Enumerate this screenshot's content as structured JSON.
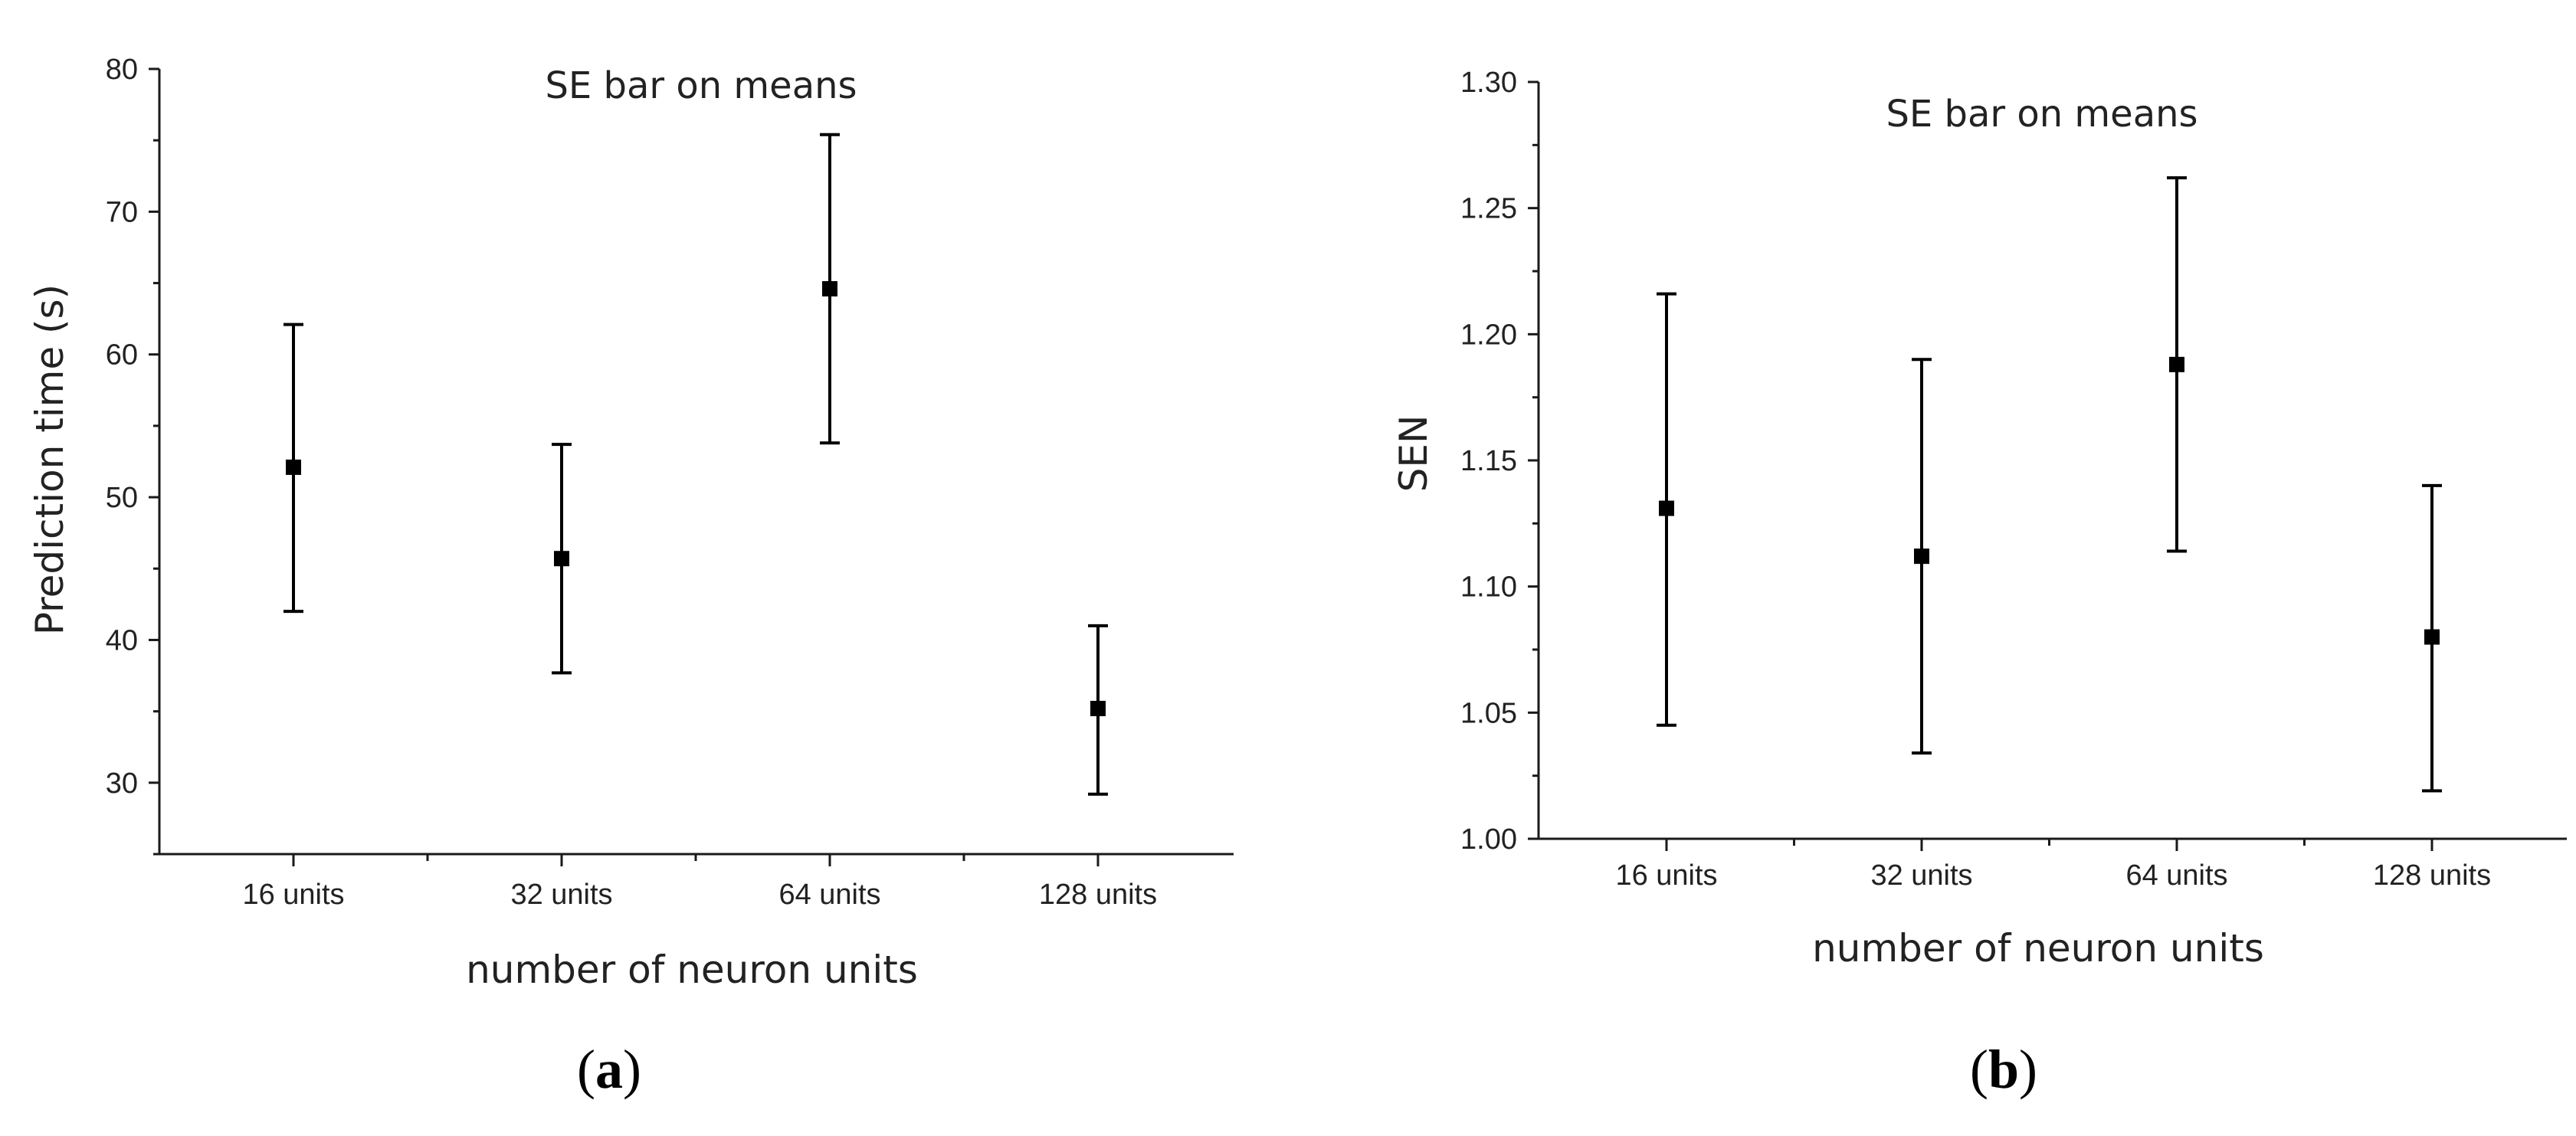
{
  "chart_data": [
    {
      "type": "scatter",
      "title": "SE bar on means",
      "xlabel": "number of neuron units",
      "ylabel": "Prediction time (s)",
      "categories": [
        "16 units",
        "32 units",
        "64 units",
        "128 units"
      ],
      "series": [
        {
          "values": [
            52.1,
            45.7,
            64.6,
            35.2
          ],
          "error_low": [
            42.0,
            37.7,
            53.8,
            29.2
          ],
          "error_high": [
            62.1,
            53.7,
            75.4,
            41.0
          ]
        }
      ],
      "ylim": [
        25,
        80
      ],
      "yticks": [
        30,
        40,
        50,
        60,
        70,
        80
      ],
      "ytick_labels": [
        "30",
        "40",
        "50",
        "60",
        "70",
        "80"
      ],
      "grid": false,
      "legend": "none",
      "color": "#000000",
      "caption_letter": "a"
    },
    {
      "type": "scatter",
      "title": "SE bar on means",
      "xlabel": "number of neuron units",
      "ylabel": "SEN",
      "categories": [
        "16 units",
        "32 units",
        "64 units",
        "128 units"
      ],
      "series": [
        {
          "values": [
            1.131,
            1.112,
            1.188,
            1.08
          ],
          "error_low": [
            1.045,
            1.034,
            1.114,
            1.019
          ],
          "error_high": [
            1.216,
            1.19,
            1.262,
            1.14
          ]
        }
      ],
      "ylim": [
        1.0,
        1.3
      ],
      "yticks": [
        1.0,
        1.05,
        1.1,
        1.15,
        1.2,
        1.25,
        1.3
      ],
      "ytick_labels": [
        "1.00",
        "1.05",
        "1.10",
        "1.15",
        "1.20",
        "1.25",
        "1.30"
      ],
      "grid": false,
      "legend": "none",
      "color": "#000000",
      "caption_letter": "b"
    }
  ],
  "captions": [
    {
      "open": "(",
      "letter": "a",
      "close": ")"
    },
    {
      "open": "(",
      "letter": "b",
      "close": ")"
    }
  ]
}
